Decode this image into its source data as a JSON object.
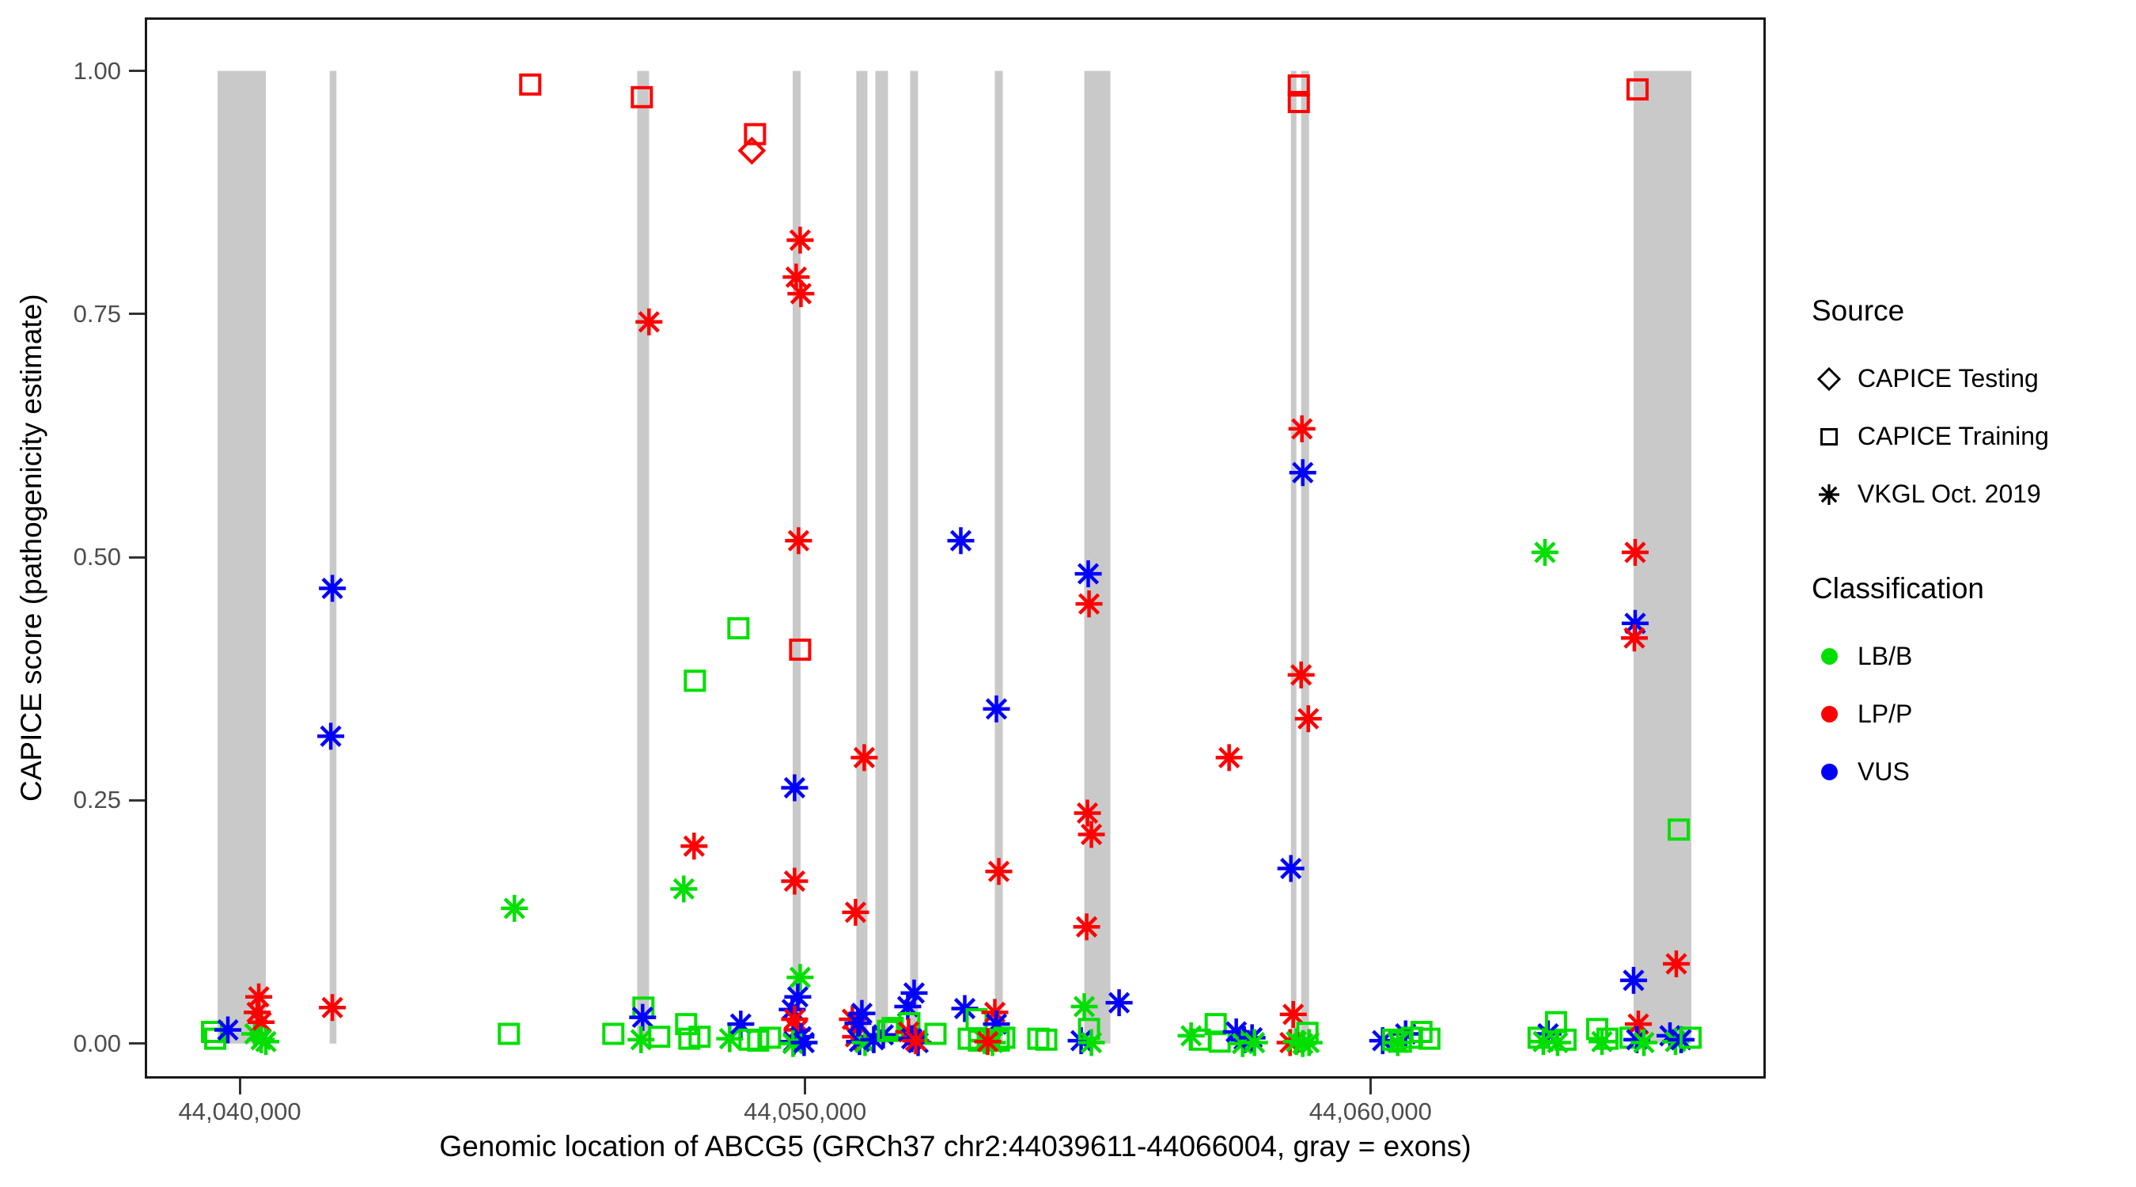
{
  "colors": {
    "LB/B": "#00DF00",
    "LP/P": "#FF0000",
    "VUS": "#0000FF",
    "exon_band": "#C9C9C9",
    "tick_text": "#4D4D4D",
    "panel_border": "#1A1A1A"
  },
  "legend": {
    "source": {
      "title": "Source",
      "items": [
        {
          "label": "CAPICE Testing",
          "shape": "diamond"
        },
        {
          "label": "CAPICE Training",
          "shape": "square"
        },
        {
          "label": "VKGL Oct. 2019",
          "shape": "asterisk"
        }
      ]
    },
    "classification": {
      "title": "Classification",
      "items": [
        {
          "label": "LB/B",
          "color": "#00DF00"
        },
        {
          "label": "LP/P",
          "color": "#FF0000"
        },
        {
          "label": "VUS",
          "color": "#0000FF"
        }
      ]
    }
  },
  "chart_data": {
    "type": "scatter",
    "title": "",
    "xlabel": "Genomic location of ABCG5 (GRCh37 chr2:44039611-44066004, gray = exons)",
    "ylabel": "CAPICE score (pathogenicity estimate)",
    "xlim": [
      44038320,
      44066992
    ],
    "ylim": [
      -0.036,
      1.055
    ],
    "x_ticks": [
      {
        "pos": 44040000,
        "label": "44,040,000"
      },
      {
        "pos": 44050000,
        "label": "44,050,000"
      },
      {
        "pos": 44060000,
        "label": "44,060,000"
      }
    ],
    "y_ticks": [
      {
        "value": 0.0,
        "label": "0.00"
      },
      {
        "value": 0.25,
        "label": "0.25"
      },
      {
        "value": 0.5,
        "label": "0.50"
      },
      {
        "value": 0.75,
        "label": "0.75"
      },
      {
        "value": 1.0,
        "label": "1.00"
      }
    ],
    "legend_mapping": {
      "shape_by": "Source",
      "color_by": "Classification"
    },
    "exons_gray_bands": [
      [
        44039608,
        44040462
      ],
      [
        44041590,
        44041710
      ],
      [
        44047030,
        44047240
      ],
      [
        44049780,
        44049920
      ],
      [
        44050906,
        44051102
      ],
      [
        44051242,
        44051466
      ],
      [
        44051858,
        44051998
      ],
      [
        44053356,
        44053496
      ],
      [
        44054938,
        44055400
      ],
      [
        44058592,
        44058690
      ],
      [
        44058774,
        44058914
      ],
      [
        44064654,
        44065676
      ]
    ],
    "points_format": [
      "genomic_position",
      "capice_score",
      "classification",
      "source"
    ],
    "points": [
      [
        44045138,
        0.986,
        "LP/P",
        "CAPICE Training"
      ],
      [
        44047112,
        0.973,
        "LP/P",
        "CAPICE Training"
      ],
      [
        44049114,
        0.935,
        "LP/P",
        "CAPICE Training"
      ],
      [
        44049058,
        0.918,
        "LP/P",
        "CAPICE Testing"
      ],
      [
        44049912,
        0.826,
        "LP/P",
        "VKGL Oct. 2019"
      ],
      [
        44049842,
        0.788,
        "LP/P",
        "VKGL Oct. 2019"
      ],
      [
        44049926,
        0.771,
        "LP/P",
        "VKGL Oct. 2019"
      ],
      [
        44047238,
        0.742,
        "LP/P",
        "VKGL Oct. 2019"
      ],
      [
        44058732,
        0.985,
        "LP/P",
        "CAPICE Training"
      ],
      [
        44058732,
        0.968,
        "LP/P",
        "CAPICE Training"
      ],
      [
        44064724,
        0.981,
        "LP/P",
        "CAPICE Training"
      ],
      [
        44049884,
        0.517,
        "LP/P",
        "VKGL Oct. 2019"
      ],
      [
        44052754,
        0.517,
        "VUS",
        "VKGL Oct. 2019"
      ],
      [
        44041638,
        0.468,
        "VUS",
        "VKGL Oct. 2019"
      ],
      [
        44041610,
        0.316,
        "VUS",
        "VKGL Oct. 2019"
      ],
      [
        44058788,
        0.632,
        "LP/P",
        "VKGL Oct. 2019"
      ],
      [
        44058802,
        0.587,
        "VUS",
        "VKGL Oct. 2019"
      ],
      [
        44063086,
        0.505,
        "LB/B",
        "VKGL Oct. 2019"
      ],
      [
        44064682,
        0.505,
        "LP/P",
        "VKGL Oct. 2019"
      ],
      [
        44064682,
        0.432,
        "VUS",
        "VKGL Oct. 2019"
      ],
      [
        44064668,
        0.417,
        "LP/P",
        "VKGL Oct. 2019"
      ],
      [
        44058774,
        0.379,
        "LP/P",
        "VKGL Oct. 2019"
      ],
      [
        44058900,
        0.334,
        "LP/P",
        "VKGL Oct. 2019"
      ],
      [
        44057500,
        0.294,
        "LP/P",
        "VKGL Oct. 2019"
      ],
      [
        44051046,
        0.294,
        "LP/P",
        "VKGL Oct. 2019"
      ],
      [
        44058592,
        0.18,
        "VUS",
        "VKGL Oct. 2019"
      ],
      [
        44064654,
        0.065,
        "VUS",
        "VKGL Oct. 2019"
      ],
      [
        44065410,
        0.082,
        "LP/P",
        "VKGL Oct. 2019"
      ],
      [
        44065452,
        0.22,
        "LB/B",
        "CAPICE Training"
      ],
      [
        44053384,
        0.344,
        "VUS",
        "VKGL Oct. 2019"
      ],
      [
        44049912,
        0.405,
        "LP/P",
        "CAPICE Training"
      ],
      [
        44048820,
        0.427,
        "LB/B",
        "CAPICE Training"
      ],
      [
        44048050,
        0.373,
        "LB/B",
        "CAPICE Training"
      ],
      [
        44049814,
        0.263,
        "VUS",
        "VKGL Oct. 2019"
      ],
      [
        44048036,
        0.203,
        "LP/P",
        "VKGL Oct. 2019"
      ],
      [
        44047854,
        0.159,
        "LB/B",
        "VKGL Oct. 2019"
      ],
      [
        44049814,
        0.167,
        "LP/P",
        "VKGL Oct. 2019"
      ],
      [
        44050892,
        0.135,
        "LP/P",
        "VKGL Oct. 2019"
      ],
      [
        44053426,
        0.177,
        "LP/P",
        "VKGL Oct. 2019"
      ],
      [
        44054994,
        0.237,
        "LP/P",
        "VKGL Oct. 2019"
      ],
      [
        44055064,
        0.215,
        "LP/P",
        "VKGL Oct. 2019"
      ],
      [
        44054980,
        0.12,
        "LP/P",
        "VKGL Oct. 2019"
      ],
      [
        44049912,
        0.068,
        "LB/B",
        "VKGL Oct. 2019"
      ],
      [
        44055008,
        0.483,
        "VUS",
        "VKGL Oct. 2019"
      ],
      [
        44055022,
        0.452,
        "LP/P",
        "VKGL Oct. 2019"
      ],
      [
        44044858,
        0.139,
        "LB/B",
        "VKGL Oct. 2019"
      ],
      [
        44040336,
        0.048,
        "LP/P",
        "VKGL Oct. 2019"
      ],
      [
        44041638,
        0.037,
        "LP/P",
        "VKGL Oct. 2019"
      ],
      [
        44047140,
        0.037,
        "LB/B",
        "CAPICE Training"
      ],
      [
        44047126,
        0.027,
        "VUS",
        "VKGL Oct. 2019"
      ],
      [
        44058634,
        0.03,
        "LP/P",
        "VKGL Oct. 2019"
      ],
      [
        44058886,
        0.011,
        "LB/B",
        "CAPICE Training"
      ],
      [
        44039510,
        0.012,
        "LB/B",
        "CAPICE Training"
      ],
      [
        44039566,
        0.005,
        "LB/B",
        "CAPICE Training"
      ],
      [
        44039790,
        0.014,
        "VUS",
        "VKGL Oct. 2019"
      ],
      [
        44040266,
        0.01,
        "LB/B",
        "VKGL Oct. 2019"
      ],
      [
        44040308,
        0.032,
        "LP/P",
        "VKGL Oct. 2019"
      ],
      [
        44040378,
        0.022,
        "LP/P",
        "VKGL Oct. 2019"
      ],
      [
        44040378,
        0.004,
        "LB/B",
        "VKGL Oct. 2019"
      ],
      [
        44040462,
        0.002,
        "LB/B",
        "VKGL Oct. 2019"
      ],
      [
        44044760,
        0.01,
        "LB/B",
        "CAPICE Training"
      ],
      [
        44046608,
        0.01,
        "LB/B",
        "CAPICE Training"
      ],
      [
        44047098,
        0.004,
        "LB/B",
        "VKGL Oct. 2019"
      ],
      [
        44047420,
        0.007,
        "LB/B",
        "CAPICE Training"
      ],
      [
        44047896,
        0.02,
        "LB/B",
        "CAPICE Training"
      ],
      [
        44047952,
        0.005,
        "LB/B",
        "CAPICE Training"
      ],
      [
        44048134,
        0.007,
        "LB/B",
        "CAPICE Training"
      ],
      [
        44048666,
        0.005,
        "LB/B",
        "VKGL Oct. 2019"
      ],
      [
        44048862,
        0.02,
        "VUS",
        "VKGL Oct. 2019"
      ],
      [
        44049016,
        0.004,
        "LB/B",
        "CAPICE Training"
      ],
      [
        44049170,
        0.003,
        "LB/B",
        "CAPICE Training"
      ],
      [
        44049380,
        0.006,
        "LB/B",
        "CAPICE Training"
      ],
      [
        44049870,
        0.048,
        "VUS",
        "VKGL Oct. 2019"
      ],
      [
        44049772,
        0.035,
        "VUS",
        "VKGL Oct. 2019"
      ],
      [
        44049814,
        0.025,
        "LP/P",
        "VKGL Oct. 2019"
      ],
      [
        44049856,
        0.014,
        "LP/P",
        "VKGL Oct. 2019"
      ],
      [
        44049926,
        0.007,
        "VUS",
        "VKGL Oct. 2019"
      ],
      [
        44049800,
        0.002,
        "VUS",
        "VKGL Oct. 2019"
      ],
      [
        44049786,
        0.0,
        "LB/B",
        "VKGL Oct. 2019"
      ],
      [
        44049982,
        0.001,
        "VUS",
        "VKGL Oct. 2019"
      ],
      [
        44050836,
        0.025,
        "LP/P",
        "VKGL Oct. 2019"
      ],
      [
        44051004,
        0.031,
        "VUS",
        "VKGL Oct. 2019"
      ],
      [
        44050892,
        0.007,
        "LP/P",
        "VKGL Oct. 2019"
      ],
      [
        44050962,
        0.002,
        "VUS",
        "VKGL Oct. 2019"
      ],
      [
        44051060,
        0.001,
        "LB/B",
        "VKGL Oct. 2019"
      ],
      [
        44051214,
        0.004,
        "VUS",
        "VKGL Oct. 2019"
      ],
      [
        44051382,
        0.009,
        "VUS",
        "VKGL Oct. 2019"
      ],
      [
        44051466,
        0.013,
        "LB/B",
        "CAPICE Training"
      ],
      [
        44050934,
        0.021,
        "VUS",
        "VKGL Oct. 2019"
      ],
      [
        44051816,
        0.038,
        "VUS",
        "VKGL Oct. 2019"
      ],
      [
        44051928,
        0.052,
        "VUS",
        "VKGL Oct. 2019"
      ],
      [
        44051550,
        0.016,
        "LB/B",
        "CAPICE Training"
      ],
      [
        44051844,
        0.021,
        "LB/B",
        "CAPICE Training"
      ],
      [
        44051830,
        0.012,
        "LP/P",
        "VKGL Oct. 2019"
      ],
      [
        44051886,
        0.005,
        "VUS",
        "VKGL Oct. 2019"
      ],
      [
        44051998,
        0.001,
        "VUS",
        "VKGL Oct. 2019"
      ],
      [
        44051956,
        0.003,
        "LP/P",
        "VKGL Oct. 2019"
      ],
      [
        44052306,
        0.01,
        "LB/B",
        "CAPICE Training"
      ],
      [
        44052824,
        0.036,
        "VUS",
        "VKGL Oct. 2019"
      ],
      [
        44053034,
        0.025,
        "LB/B",
        "CAPICE Training"
      ],
      [
        44053356,
        0.032,
        "LP/P",
        "VKGL Oct. 2019"
      ],
      [
        44053384,
        0.02,
        "VUS",
        "VKGL Oct. 2019"
      ],
      [
        44052894,
        0.005,
        "LB/B",
        "CAPICE Training"
      ],
      [
        44053076,
        0.003,
        "LB/B",
        "CAPICE Training"
      ],
      [
        44053258,
        0.004,
        "LB/B",
        "CAPICE Training"
      ],
      [
        44053426,
        0.003,
        "LB/B",
        "CAPICE Training"
      ],
      [
        44053524,
        0.006,
        "LB/B",
        "CAPICE Training"
      ],
      [
        44053174,
        0.003,
        "LB/B",
        "VKGL Oct. 2019"
      ],
      [
        44053314,
        0.001,
        "LB/B",
        "VKGL Oct. 2019"
      ],
      [
        44053230,
        0.002,
        "LP/P",
        "VKGL Oct. 2019"
      ],
      [
        44054126,
        0.005,
        "LB/B",
        "CAPICE Training"
      ],
      [
        44054266,
        0.004,
        "LB/B",
        "CAPICE Training"
      ],
      [
        44054938,
        0.038,
        "LB/B",
        "VKGL Oct. 2019"
      ],
      [
        44054882,
        0.003,
        "VUS",
        "VKGL Oct. 2019"
      ],
      [
        44055022,
        0.015,
        "LB/B",
        "CAPICE Training"
      ],
      [
        44055064,
        0.001,
        "LB/B",
        "VKGL Oct. 2019"
      ],
      [
        44055554,
        0.042,
        "VUS",
        "VKGL Oct. 2019"
      ],
      [
        44056828,
        0.008,
        "LB/B",
        "VKGL Oct. 2019"
      ],
      [
        44056982,
        0.004,
        "LB/B",
        "CAPICE Training"
      ],
      [
        44057262,
        0.02,
        "LB/B",
        "CAPICE Training"
      ],
      [
        44057332,
        0.002,
        "LB/B",
        "CAPICE Training"
      ],
      [
        44057626,
        0.012,
        "VUS",
        "VKGL Oct. 2019"
      ],
      [
        44057766,
        0.004,
        "VUS",
        "VKGL Oct. 2019"
      ],
      [
        44057738,
        0.0,
        "LB/B",
        "VKGL Oct. 2019"
      ],
      [
        44057906,
        0.006,
        "VUS",
        "VKGL Oct. 2019"
      ],
      [
        44057948,
        0.001,
        "LB/B",
        "VKGL Oct. 2019"
      ],
      [
        44058578,
        0.001,
        "LP/P",
        "VKGL Oct. 2019"
      ],
      [
        44058690,
        0.002,
        "LB/B",
        "VKGL Oct. 2019"
      ],
      [
        44058802,
        0.0,
        "LB/B",
        "VKGL Oct. 2019"
      ],
      [
        44058914,
        0.001,
        "LB/B",
        "VKGL Oct. 2019"
      ],
      [
        44060216,
        0.003,
        "VUS",
        "VKGL Oct. 2019"
      ],
      [
        44060622,
        0.01,
        "VUS",
        "VKGL Oct. 2019"
      ],
      [
        44060398,
        0.004,
        "LB/B",
        "CAPICE Training"
      ],
      [
        44060538,
        0.002,
        "LB/B",
        "CAPICE Training"
      ],
      [
        44060734,
        0.006,
        "LB/B",
        "CAPICE Training"
      ],
      [
        44060902,
        0.012,
        "LB/B",
        "CAPICE Training"
      ],
      [
        44061042,
        0.005,
        "LB/B",
        "CAPICE Training"
      ],
      [
        44060482,
        0.001,
        "LB/B",
        "VKGL Oct. 2019"
      ],
      [
        44062974,
        0.006,
        "LB/B",
        "CAPICE Training"
      ],
      [
        44063142,
        0.01,
        "VUS",
        "VKGL Oct. 2019"
      ],
      [
        44063058,
        0.002,
        "LB/B",
        "VKGL Oct. 2019"
      ],
      [
        44063310,
        0.001,
        "LB/B",
        "VKGL Oct. 2019"
      ],
      [
        44063282,
        0.022,
        "LB/B",
        "CAPICE Training"
      ],
      [
        44063450,
        0.004,
        "LB/B",
        "CAPICE Training"
      ],
      [
        44064010,
        0.015,
        "LB/B",
        "CAPICE Training"
      ],
      [
        44064094,
        0.002,
        "LB/B",
        "VKGL Oct. 2019"
      ],
      [
        44064192,
        0.005,
        "LB/B",
        "CAPICE Training"
      ],
      [
        44064598,
        0.006,
        "LB/B",
        "CAPICE Training"
      ],
      [
        44064738,
        0.02,
        "LP/P",
        "VKGL Oct. 2019"
      ],
      [
        44064710,
        0.004,
        "VUS",
        "VKGL Oct. 2019"
      ],
      [
        44064836,
        0.001,
        "LB/B",
        "VKGL Oct. 2019"
      ],
      [
        44065298,
        0.008,
        "VUS",
        "VKGL Oct. 2019"
      ],
      [
        44065396,
        0.002,
        "LB/B",
        "VKGL Oct. 2019"
      ],
      [
        44065494,
        0.004,
        "VUS",
        "VKGL Oct. 2019"
      ],
      [
        44065662,
        0.006,
        "LB/B",
        "CAPICE Training"
      ]
    ]
  }
}
